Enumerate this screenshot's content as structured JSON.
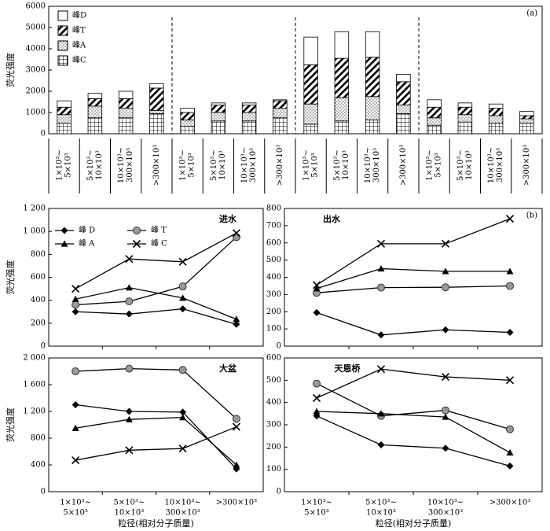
{
  "chart_data": [
    {
      "type": "bar",
      "stacked": true,
      "ylabel": "荧光强度",
      "annotation": "(a)",
      "legend": "upper-left",
      "categories": [
        [
          "1×10³~",
          "5×10³"
        ],
        [
          "5×10³~",
          "10×10³"
        ],
        [
          "10×10³~",
          "300×10³"
        ],
        [
          ">300×10³"
        ],
        [
          "1×10³~",
          "5×10³"
        ],
        [
          "5×10³~",
          "10×10³"
        ],
        [
          "10×10³~",
          "300×10³"
        ],
        [
          ">300×10³"
        ],
        [
          "1×10³~",
          "5×10³"
        ],
        [
          "5×10³~",
          "10×10³"
        ],
        [
          "10×10³~",
          "300×10³"
        ],
        [
          ">300×10³"
        ],
        [
          "1×10³~",
          "5×10³"
        ],
        [
          "5×10³~",
          "10×10³"
        ],
        [
          "10×10³~",
          "300×10³"
        ],
        [
          ">300×10³"
        ]
      ],
      "series": [
        {
          "name": "峰D",
          "hatch": "none",
          "values": [
            300,
            250,
            350,
            200,
            200,
            100,
            100,
            50,
            1300,
            1250,
            1200,
            350,
            350,
            200,
            200,
            200
          ]
        },
        {
          "name": "峰T",
          "hatch": "diagonal",
          "values": [
            350,
            350,
            450,
            1050,
            350,
            350,
            350,
            350,
            1850,
            1850,
            1850,
            1100,
            500,
            350,
            350,
            150
          ]
        },
        {
          "name": "峰A",
          "hatch": "dots",
          "values": [
            400,
            550,
            450,
            150,
            300,
            400,
            400,
            450,
            950,
            1100,
            1100,
            400,
            350,
            350,
            350,
            200
          ]
        },
        {
          "name": "峰C",
          "hatch": "grid",
          "values": [
            500,
            750,
            750,
            950,
            350,
            600,
            600,
            750,
            450,
            600,
            650,
            950,
            400,
            550,
            500,
            500
          ]
        }
      ],
      "ylim": [
        0,
        6000
      ],
      "yticks": [
        0,
        1000,
        2000,
        3000,
        4000,
        5000,
        6000
      ]
    },
    {
      "type": "line",
      "title": "进水",
      "ylabel": "荧光强度",
      "legend": "upper-left",
      "series": [
        {
          "name": "峰 D",
          "marker": "diamond",
          "color": "#000",
          "values": [
            300,
            280,
            325,
            190
          ]
        },
        {
          "name": "峰 T",
          "marker": "circle",
          "color": "#999",
          "values": [
            360,
            390,
            520,
            950
          ]
        },
        {
          "name": "峰 A",
          "marker": "triangle",
          "color": "#000",
          "values": [
            410,
            510,
            420,
            235
          ]
        },
        {
          "name": "峰 C",
          "marker": "x",
          "color": "#000",
          "values": [
            500,
            760,
            735,
            985
          ]
        }
      ],
      "ylim": [
        0,
        1200
      ],
      "yticks": [
        0,
        200,
        400,
        600,
        800,
        {
          "value": 1000,
          "label": "1 000"
        },
        {
          "value": 1200,
          "label": "1 200"
        }
      ]
    },
    {
      "type": "line",
      "title": "出水",
      "annotation": "(b)",
      "series": [
        {
          "marker": "diamond",
          "color": "#000",
          "values": [
            195,
            65,
            95,
            80
          ]
        },
        {
          "marker": "circle",
          "color": "#999",
          "values": [
            310,
            340,
            342,
            350
          ]
        },
        {
          "marker": "triangle",
          "color": "#000",
          "values": [
            335,
            450,
            435,
            435
          ]
        },
        {
          "marker": "x",
          "color": "#000",
          "values": [
            355,
            595,
            595,
            740
          ]
        }
      ],
      "ylim": [
        0,
        800
      ],
      "yticks": [
        0,
        100,
        200,
        300,
        400,
        500,
        600,
        700,
        800
      ]
    },
    {
      "type": "line",
      "title": "大盆",
      "ylabel": "荧光强度",
      "xlabel": "粒径(相对分子质量)",
      "categories": [
        [
          "1×10³~",
          "5×10³"
        ],
        [
          "5×10³~",
          "10×10³"
        ],
        [
          "10×10³~",
          "300×10³"
        ],
        [
          ">300×10³"
        ]
      ],
      "series": [
        {
          "marker": "diamond",
          "color": "#000",
          "values": [
            1300,
            1200,
            1190,
            340
          ]
        },
        {
          "marker": "circle",
          "color": "#999",
          "values": [
            1800,
            1840,
            1820,
            1090
          ]
        },
        {
          "marker": "triangle",
          "color": "#000",
          "values": [
            950,
            1080,
            1110,
            400
          ]
        },
        {
          "marker": "x",
          "color": "#000",
          "values": [
            470,
            620,
            645,
            970
          ]
        }
      ],
      "ylim": [
        0,
        2000
      ],
      "yticks": [
        0,
        400,
        800,
        {
          "value": 1200,
          "label": "1 200"
        },
        {
          "value": 1600,
          "label": "1 600"
        },
        {
          "value": 2000,
          "label": "2 000"
        }
      ]
    },
    {
      "type": "line",
      "title": "天恩桥",
      "xlabel": "粒径(相对分子质量)",
      "categories": [
        [
          "1×10³~",
          "5×10³"
        ],
        [
          "5×10³~",
          "10×10³"
        ],
        [
          "10×10³~",
          "300×10³"
        ],
        [
          ">300×10³"
        ]
      ],
      "series": [
        {
          "marker": "diamond",
          "color": "#000",
          "values": [
            340,
            210,
            195,
            115
          ]
        },
        {
          "marker": "circle",
          "color": "#999",
          "values": [
            485,
            340,
            365,
            280
          ]
        },
        {
          "marker": "triangle",
          "color": "#000",
          "values": [
            360,
            350,
            335,
            175
          ]
        },
        {
          "marker": "x",
          "color": "#000",
          "values": [
            420,
            550,
            515,
            500
          ]
        }
      ],
      "ylim": [
        0,
        600
      ],
      "yticks": [
        0,
        100,
        200,
        300,
        400,
        500,
        600
      ]
    }
  ]
}
